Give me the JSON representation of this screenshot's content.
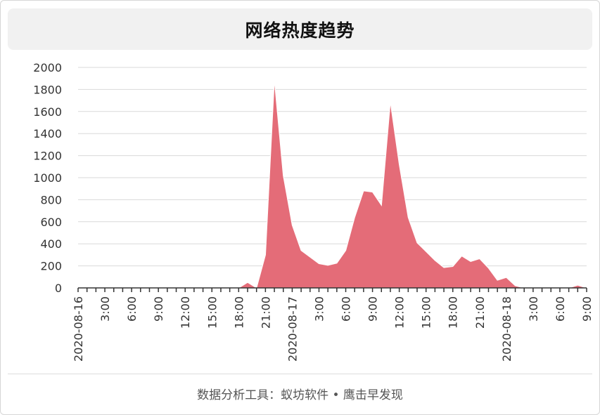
{
  "title": "网络热度趋势",
  "footer": "数据分析工具：蚁坊软件 • 鹰击早发现",
  "colors": {
    "area_fill": "#e46c78",
    "area_stroke": "#ffffff",
    "grid": "#d9d9d9",
    "axis": "#333333"
  },
  "chart_data": {
    "type": "area",
    "title": "网络热度趋势",
    "xlabel": "",
    "ylabel": "",
    "ylim": [
      0,
      2000
    ],
    "yticks": [
      0,
      200,
      400,
      600,
      800,
      1000,
      1200,
      1400,
      1600,
      1800,
      2000
    ],
    "x_start": "2020-08-16 00:00",
    "x_end": "2020-08-18 09:00",
    "step": "1h",
    "xtick_labels": [
      {
        "hour": 0,
        "label": "2020-08-16"
      },
      {
        "hour": 3,
        "label": "3:00"
      },
      {
        "hour": 6,
        "label": "6:00"
      },
      {
        "hour": 9,
        "label": "9:00"
      },
      {
        "hour": 12,
        "label": "12:00"
      },
      {
        "hour": 15,
        "label": "15:00"
      },
      {
        "hour": 18,
        "label": "18:00"
      },
      {
        "hour": 21,
        "label": "21:00"
      },
      {
        "hour": 24,
        "label": "2020-08-17"
      },
      {
        "hour": 27,
        "label": "3:00"
      },
      {
        "hour": 30,
        "label": "6:00"
      },
      {
        "hour": 33,
        "label": "9:00"
      },
      {
        "hour": 36,
        "label": "12:00"
      },
      {
        "hour": 39,
        "label": "15:00"
      },
      {
        "hour": 42,
        "label": "18:00"
      },
      {
        "hour": 45,
        "label": "21:00"
      },
      {
        "hour": 48,
        "label": "2020-08-18"
      },
      {
        "hour": 51,
        "label": "3:00"
      },
      {
        "hour": 54,
        "label": "6:00"
      },
      {
        "hour": 57,
        "label": "9:00"
      }
    ],
    "values": [
      0,
      0,
      0,
      0,
      0,
      0,
      0,
      0,
      0,
      0,
      0,
      0,
      0,
      0,
      0,
      0,
      0,
      0,
      0,
      50,
      0,
      300,
      1890,
      1020,
      570,
      340,
      280,
      220,
      205,
      225,
      340,
      640,
      880,
      870,
      750,
      1690,
      1120,
      640,
      410,
      330,
      250,
      185,
      195,
      290,
      240,
      265,
      180,
      70,
      95,
      20,
      0,
      0,
      0,
      0,
      0,
      0,
      25,
      0
    ],
    "grid": true,
    "legend": "none"
  }
}
